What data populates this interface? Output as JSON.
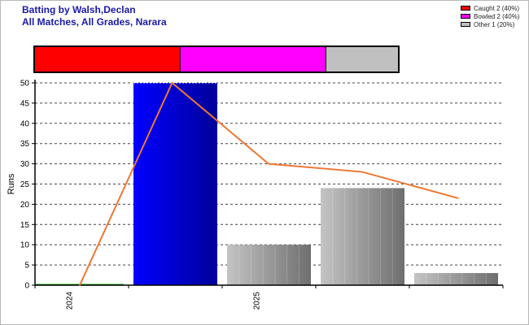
{
  "title_line1": "Batting by Walsh,Declan",
  "title_line2": "All Matches, All Grades, Narara",
  "legend": [
    {
      "label": "Caught 2 (40%)",
      "color": "#ff0000"
    },
    {
      "label": "Bowled 2 (40%)",
      "color": "#ff00ff"
    },
    {
      "label": "Other 1 (20%)",
      "color": "#c0c0c0"
    }
  ],
  "chart_data": {
    "type": "bar",
    "ylabel": "Runs",
    "ylim": [
      0,
      50
    ],
    "yticks": [
      0,
      5,
      10,
      15,
      20,
      25,
      30,
      35,
      40,
      45,
      50
    ],
    "grid": true,
    "x_tick_labels": [
      {
        "label": "2024",
        "at_match": 1
      },
      {
        "label": "2025",
        "at_match": 3
      }
    ],
    "series": [
      {
        "type": "bar",
        "values": [
          0,
          50,
          10,
          24,
          3
        ]
      },
      {
        "type": "line",
        "color": "#ee7733",
        "values": [
          0,
          50,
          30,
          28,
          21.5
        ]
      }
    ],
    "dismissal_bar": {
      "segments": [
        {
          "label": "Caught",
          "count": 2,
          "color": "#ff0000"
        },
        {
          "label": "Bowled",
          "count": 2,
          "color": "#ff00ff"
        },
        {
          "label": "Other",
          "count": 1,
          "color": "#c0c0c0"
        }
      ]
    }
  }
}
